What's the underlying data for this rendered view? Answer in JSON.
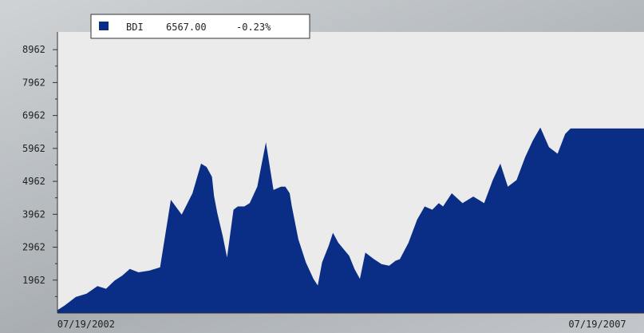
{
  "chart_data": {
    "type": "area",
    "title": "",
    "xlabel": "",
    "ylabel": "",
    "legend": {
      "placement": "top-left",
      "ticker": "BDI",
      "price": "6567.00",
      "change": "-0.23%"
    },
    "y_ticks": [
      "8962",
      "7962",
      "6962",
      "5962",
      "4962",
      "3962",
      "2962",
      "1962"
    ],
    "ylim": [
      962,
      9500
    ],
    "x_tick_labels": [
      "07/19/2002",
      "07/19/2007"
    ],
    "x_tick_values": [
      2002.548,
      2007.548
    ],
    "xlim": [
      2002.55,
      2007.98
    ],
    "grid": false,
    "colors": {
      "fill": "#0a2e86",
      "plot_bg": "#ebebeb",
      "axis": "#333333"
    },
    "series": [
      {
        "x": [
          2002.55,
          2002.62,
          2002.72,
          2002.82,
          2002.92,
          2003.0,
          2003.08,
          2003.15,
          2003.22,
          2003.3,
          2003.4,
          2003.5,
          2003.6,
          2003.7,
          2003.8,
          2003.88,
          2003.93,
          2003.98,
          2004.0,
          2004.03,
          2004.08,
          2004.12,
          2004.18,
          2004.22,
          2004.28,
          2004.33,
          2004.4,
          2004.48,
          2004.55,
          2004.62,
          2004.66,
          2004.7,
          2004.72,
          2004.78,
          2004.85,
          2004.92,
          2004.96,
          2005.0,
          2005.06,
          2005.1,
          2005.15,
          2005.2,
          2005.25,
          2005.3,
          2005.35,
          2005.4,
          2005.48,
          2005.55,
          2005.62,
          2005.68,
          2005.72,
          2005.8,
          2005.88,
          2005.95,
          2006.02,
          2006.08,
          2006.12,
          2006.2,
          2006.3,
          2006.4,
          2006.5,
          2006.58,
          2006.65,
          2006.72,
          2006.8,
          2006.88,
          2006.95,
          2007.02,
          2007.1,
          2007.18,
          2007.25,
          2007.3,
          2007.38,
          2007.45,
          2007.52,
          2007.58,
          2007.62,
          2007.68,
          2007.72,
          2007.76,
          2007.8,
          2007.85,
          2007.9,
          2007.95,
          2007.98
        ],
        "values": [
          1050,
          1200,
          1450,
          1550,
          1780,
          1700,
          1950,
          2100,
          2300,
          2200,
          2250,
          2350,
          4400,
          3950,
          4600,
          5500,
          5400,
          5100,
          4500,
          4000,
          3300,
          2650,
          4100,
          4200,
          4200,
          4300,
          4800,
          6150,
          4700,
          4800,
          4800,
          4600,
          4200,
          3200,
          2500,
          2000,
          1800,
          2500,
          3000,
          3400,
          3100,
          2900,
          2700,
          2300,
          2000,
          2800,
          2600,
          2450,
          2400,
          2550,
          2600,
          3100,
          3800,
          4200,
          4100,
          4300,
          4200,
          4600,
          4300,
          4500,
          4300,
          5000,
          5500,
          4800,
          5000,
          5700,
          6200,
          6600,
          6000,
          5800,
          6400,
          6567,
          6567,
          6567,
          6567,
          6567,
          6567,
          6567,
          6567,
          6567,
          6567,
          6567,
          6567,
          6567,
          6567
        ]
      }
    ]
  }
}
